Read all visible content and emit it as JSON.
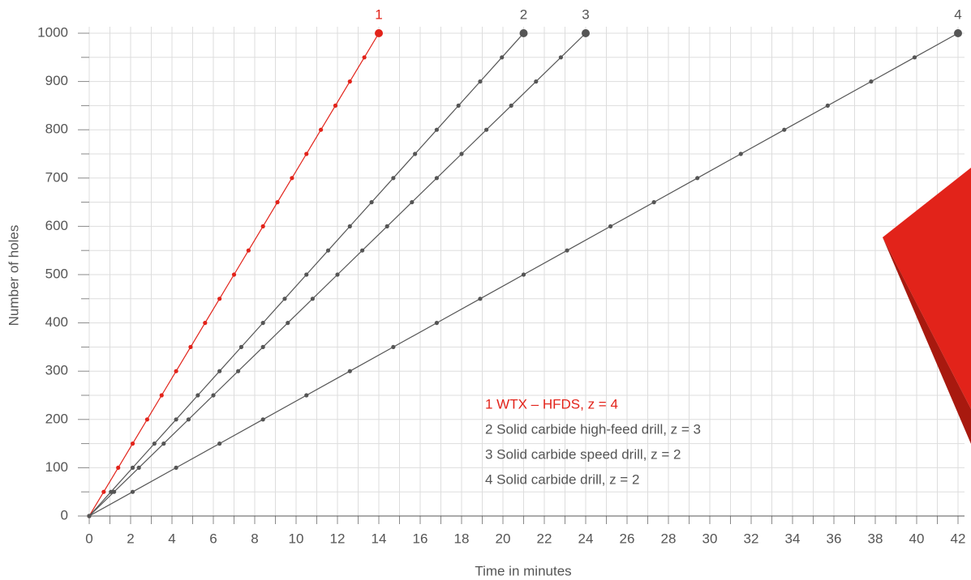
{
  "chart_data": {
    "type": "line",
    "x_label": "Time in minutes",
    "y_label": "Number of holes",
    "xlim": [
      0,
      42
    ],
    "ylim": [
      0,
      1000
    ],
    "xticks": [
      0,
      2,
      4,
      6,
      8,
      10,
      12,
      14,
      16,
      18,
      20,
      22,
      24,
      26,
      28,
      30,
      32,
      34,
      36,
      38,
      40,
      42
    ],
    "yticks": [
      0,
      100,
      200,
      300,
      400,
      500,
      600,
      700,
      800,
      900,
      1000
    ],
    "grid": true,
    "series": [
      {
        "name": "1 WTX – HFDS, z = 4",
        "label": "1",
        "color": "#e2231a",
        "x": [
          0,
          0.7,
          1.4,
          2.1,
          2.8,
          3.5,
          4.2,
          4.9,
          5.6,
          6.3,
          7,
          7.7,
          8.4,
          9.1,
          9.8,
          10.5,
          11.2,
          11.9,
          12.6,
          13.3,
          14
        ],
        "values": [
          0,
          50,
          100,
          150,
          200,
          250,
          300,
          350,
          400,
          450,
          500,
          550,
          600,
          650,
          700,
          750,
          800,
          850,
          900,
          950,
          1000
        ]
      },
      {
        "name": "2 Solid carbide high-feed drill, z = 3",
        "label": "2",
        "color": "#555555",
        "x": [
          0,
          1.05,
          2.1,
          3.15,
          4.2,
          5.25,
          6.3,
          7.35,
          8.4,
          9.45,
          10.5,
          11.55,
          12.6,
          13.65,
          14.7,
          15.75,
          16.8,
          17.85,
          18.9,
          19.95,
          21
        ],
        "values": [
          0,
          50,
          100,
          150,
          200,
          250,
          300,
          350,
          400,
          450,
          500,
          550,
          600,
          650,
          700,
          750,
          800,
          850,
          900,
          950,
          1000
        ]
      },
      {
        "name": "3 Solid carbide speed drill, z = 2",
        "label": "3",
        "color": "#555555",
        "x": [
          0,
          1.2,
          2.4,
          3.6,
          4.8,
          6,
          7.2,
          8.4,
          9.6,
          10.8,
          12,
          13.2,
          14.4,
          15.6,
          16.8,
          18,
          19.2,
          20.4,
          21.6,
          22.8,
          24
        ],
        "values": [
          0,
          50,
          100,
          150,
          200,
          250,
          300,
          350,
          400,
          450,
          500,
          550,
          600,
          650,
          700,
          750,
          800,
          850,
          900,
          950,
          1000
        ]
      },
      {
        "name": "4 Solid carbide drill, z = 2",
        "label": "4",
        "color": "#555555",
        "x": [
          0,
          2.1,
          4.2,
          6.3,
          8.4,
          10.5,
          12.6,
          14.7,
          16.8,
          18.9,
          21,
          23.1,
          25.2,
          27.3,
          29.4,
          31.5,
          33.6,
          35.7,
          37.8,
          39.9,
          42
        ],
        "values": [
          0,
          50,
          100,
          150,
          200,
          250,
          300,
          350,
          400,
          450,
          500,
          550,
          600,
          650,
          700,
          750,
          800,
          850,
          900,
          950,
          1000
        ]
      }
    ]
  }
}
